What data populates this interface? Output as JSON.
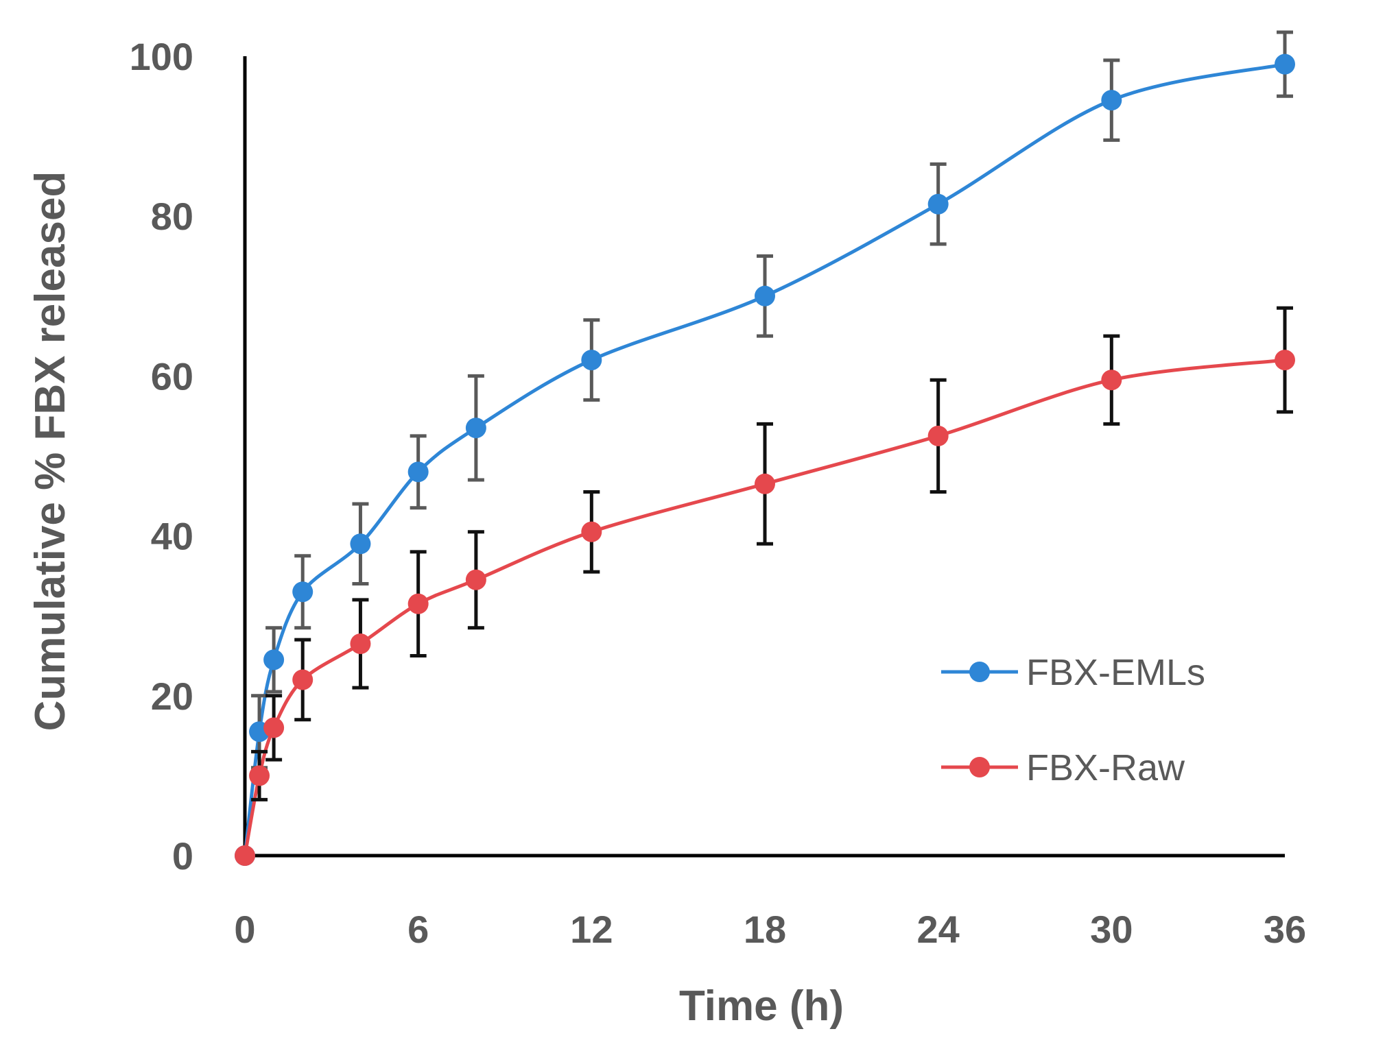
{
  "chart_data": {
    "type": "line",
    "title": "",
    "xlabel": "Time (h)",
    "ylabel": "Cumulative % FBX released",
    "xlim": [
      0,
      36
    ],
    "ylim": [
      0,
      100
    ],
    "x_ticks": [
      0,
      6,
      12,
      18,
      24,
      30,
      36
    ],
    "y_ticks": [
      0,
      20,
      40,
      60,
      80,
      100
    ],
    "grid": false,
    "legend_position": "center-right",
    "series": [
      {
        "name": "FBX-EMLs",
        "color": "#2E86D6",
        "error_bar_color": "#595959",
        "x": [
          0,
          0.5,
          1,
          2,
          4,
          6,
          8,
          12,
          18,
          24,
          30,
          36
        ],
        "y": [
          0,
          15.5,
          24.5,
          33,
          39,
          48,
          53.5,
          62,
          70,
          81.5,
          94.5,
          99
        ],
        "error": [
          0,
          4.5,
          4,
          4.5,
          5,
          4.5,
          6.5,
          5,
          5,
          5,
          5,
          4
        ]
      },
      {
        "name": "FBX-Raw",
        "color": "#E5484D",
        "error_bar_color": "#111111",
        "x": [
          0,
          0.5,
          1,
          2,
          4,
          6,
          8,
          12,
          18,
          24,
          30,
          36
        ],
        "y": [
          0,
          10,
          16,
          22,
          26.5,
          31.5,
          34.5,
          40.5,
          46.5,
          52.5,
          59.5,
          62
        ],
        "error": [
          0,
          3,
          4,
          5,
          5.5,
          6.5,
          6,
          5,
          7.5,
          7,
          5.5,
          6.5
        ]
      }
    ]
  }
}
